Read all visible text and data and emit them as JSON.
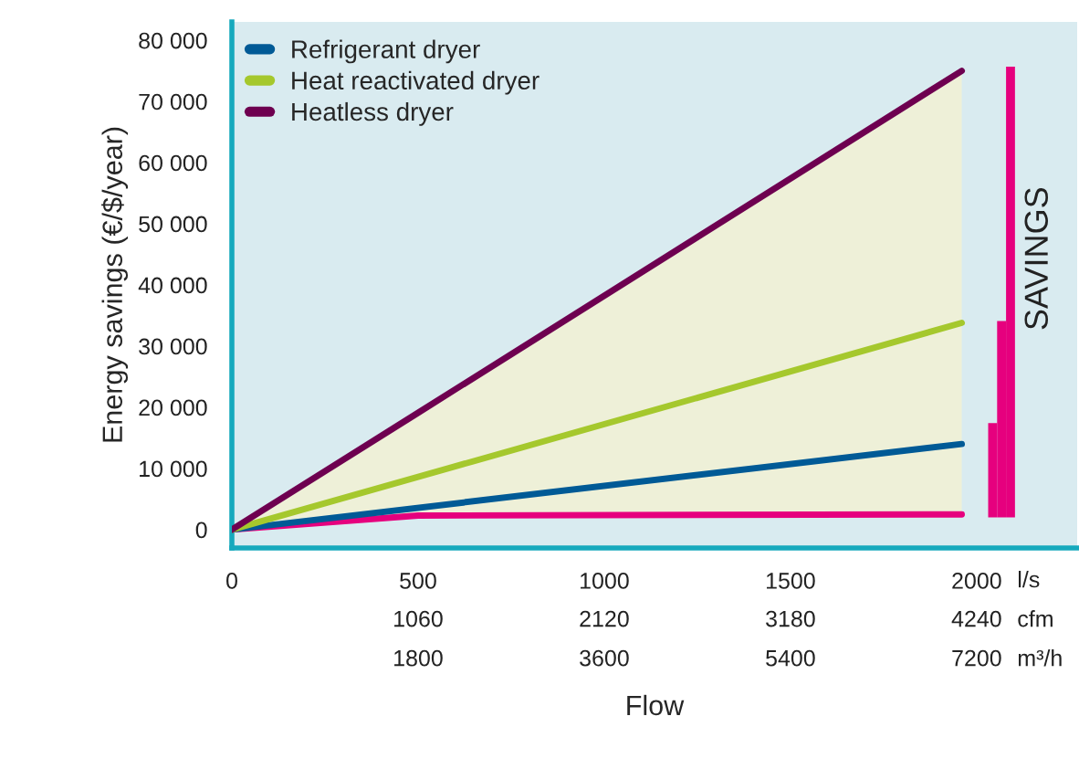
{
  "chart_data": {
    "type": "line",
    "xlabel": "Flow",
    "ylabel": "Energy savings (€/$/year)",
    "xlim": [
      0,
      2270
    ],
    "ylim": [
      -3000,
      83000
    ],
    "xticks": [
      0,
      500,
      1000,
      1500,
      2000
    ],
    "yticks": [
      0,
      {
        "value": 10000,
        "label": "10 000"
      },
      {
        "value": 20000,
        "label": "20 000"
      },
      {
        "value": 30000,
        "label": "30 000"
      },
      {
        "value": 40000,
        "label": "40 000"
      },
      {
        "value": 50000,
        "label": "50 000"
      },
      {
        "value": 60000,
        "label": "60 000"
      },
      {
        "value": 70000,
        "label": "70 000"
      },
      {
        "value": 80000,
        "label": "80 000"
      }
    ],
    "series": [
      {
        "color": "#e6007e",
        "x": [
          0,
          500,
          1960
        ],
        "values": [
          0,
          2300,
          2500
        ]
      },
      {
        "name": "Refrigerant dryer",
        "color": "#005a96",
        "x": [
          0,
          1960
        ],
        "values": [
          0,
          14000
        ]
      },
      {
        "name": "Heat reactivated dryer",
        "color": "#a5c82d",
        "x": [
          0,
          1960
        ],
        "values": [
          0,
          33800
        ]
      },
      {
        "name": "Heatless dryer",
        "color": "#6e0050",
        "x": [
          0,
          500,
          1960
        ],
        "values": [
          0,
          19100,
          75000
        ],
        "lower": [
          0,
          2300,
          2500
        ],
        "upper": [
          0,
          19100,
          75000
        ]
      },
      {
        "type": "bar",
        "color": "#e6007e",
        "x": [
          2043,
          2067,
          2091
        ],
        "base": [
          2000,
          2000,
          2000
        ],
        "values": [
          15400,
          32100,
          73700
        ]
      }
    ],
    "annotations": [
      "SAVINGS",
      "l/s",
      "cfm",
      "m³/h",
      "1060",
      "2120",
      "3180",
      "4240",
      "1800",
      "3600",
      "5400",
      "7200"
    ],
    "legend": "top left",
    "grid": false
  }
}
